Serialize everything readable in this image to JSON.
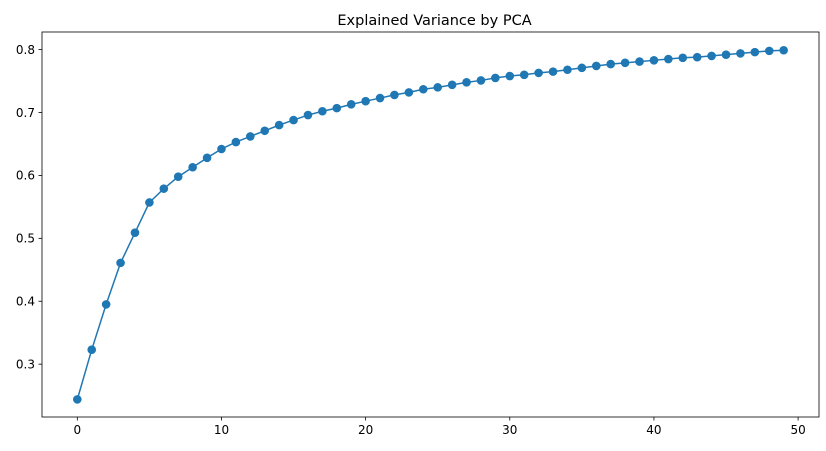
{
  "chart_data": {
    "type": "line",
    "title": "Explained Variance by PCA",
    "xlabel": "",
    "ylabel": "",
    "xlim": [
      -2.45,
      51.45
    ],
    "ylim": [
      0.216,
      0.828
    ],
    "xticks": [
      0,
      10,
      20,
      30,
      40,
      50
    ],
    "yticks": [
      0.3,
      0.4,
      0.5,
      0.6,
      0.7,
      0.8
    ],
    "xtick_labels": [
      "0",
      "10",
      "20",
      "30",
      "40",
      "50"
    ],
    "ytick_labels": [
      "0.3",
      "0.4",
      "0.5",
      "0.6",
      "0.7",
      "0.8"
    ],
    "grid": false,
    "legend": "none",
    "series": [
      {
        "color": "#1f77b4",
        "marker": "circle",
        "x": [
          0,
          1,
          2,
          3,
          4,
          5,
          6,
          7,
          8,
          9,
          10,
          11,
          12,
          13,
          14,
          15,
          16,
          17,
          18,
          19,
          20,
          21,
          22,
          23,
          24,
          25,
          26,
          27,
          28,
          29,
          30,
          31,
          32,
          33,
          34,
          35,
          36,
          37,
          38,
          39,
          40,
          41,
          42,
          43,
          44,
          45,
          46,
          47,
          48,
          49
        ],
        "y": [
          0.244,
          0.323,
          0.395,
          0.461,
          0.509,
          0.557,
          0.579,
          0.598,
          0.613,
          0.628,
          0.642,
          0.653,
          0.662,
          0.671,
          0.68,
          0.688,
          0.696,
          0.702,
          0.707,
          0.713,
          0.718,
          0.723,
          0.728,
          0.732,
          0.737,
          0.74,
          0.744,
          0.748,
          0.751,
          0.755,
          0.758,
          0.76,
          0.763,
          0.765,
          0.768,
          0.771,
          0.774,
          0.777,
          0.779,
          0.781,
          0.783,
          0.785,
          0.787,
          0.788,
          0.79,
          0.792,
          0.794,
          0.796,
          0.798,
          0.799
        ]
      }
    ]
  }
}
